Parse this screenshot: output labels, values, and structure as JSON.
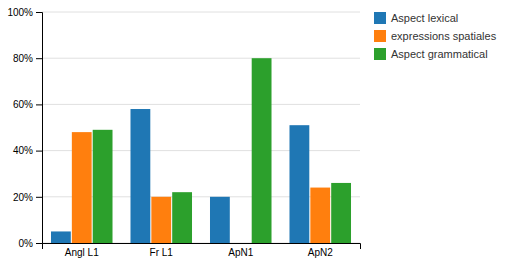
{
  "chart_data": {
    "type": "bar",
    "categories": [
      "Angl L1",
      "Fr L1",
      "ApN1",
      "ApN2"
    ],
    "series": [
      {
        "name": "Aspect lexical",
        "values": [
          5,
          58,
          20,
          51
        ]
      },
      {
        "name": "expressions spatiales",
        "values": [
          48,
          20,
          0,
          24
        ]
      },
      {
        "name": "Aspect grammatical",
        "values": [
          49,
          22,
          80,
          26
        ]
      }
    ],
    "ylim": [
      0,
      100
    ],
    "yticks": [
      {
        "value": 0,
        "label": "0%"
      },
      {
        "value": 20,
        "label": "20%"
      },
      {
        "value": 40,
        "label": "40%"
      },
      {
        "value": 60,
        "label": "60%"
      },
      {
        "value": 80,
        "label": "80%"
      },
      {
        "value": 100,
        "label": "100%"
      }
    ],
    "grid": true,
    "legend": "upper right"
  }
}
